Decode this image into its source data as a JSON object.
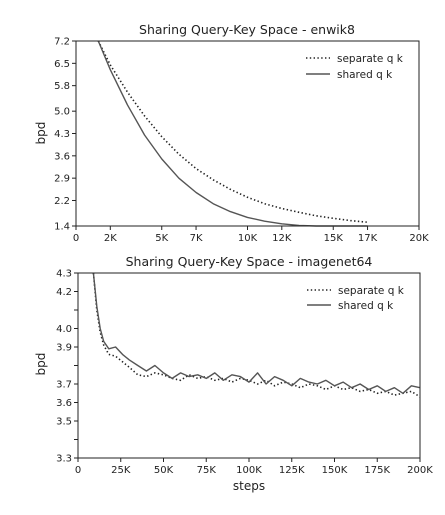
{
  "chart_data": [
    {
      "type": "line",
      "title": "Sharing Query-Key Space - enwik8",
      "xlabel": "",
      "ylabel": "bpd",
      "xlim": [
        0,
        20000
      ],
      "ylim": [
        1.4,
        7.2
      ],
      "x_ticks": [
        0,
        2000,
        5000,
        7000,
        10000,
        12000,
        15000,
        17000,
        20000
      ],
      "x_tick_labels": [
        "0",
        "2K",
        "5K",
        "7K",
        "10K",
        "12K",
        "15K",
        "17K",
        "20K"
      ],
      "y_ticks": [
        1.4,
        2.2,
        2.9,
        3.6,
        4.3,
        5.0,
        5.8,
        6.5,
        7.2
      ],
      "y_tick_labels": [
        "1.4",
        "2.2",
        "2.9",
        "3.6",
        "4.3",
        "5.0",
        "5.8",
        "6.5",
        "7.2"
      ],
      "legend": "top-right",
      "grid": false,
      "series": [
        {
          "name": "separate q k",
          "style": "dotted",
          "color": "#222222",
          "x": [
            1300,
            2000,
            3000,
            4000,
            5000,
            6000,
            7000,
            8000,
            9000,
            10000,
            11000,
            12000,
            13000,
            14000,
            15000,
            16000,
            17000
          ],
          "y": [
            7.2,
            6.45,
            5.6,
            4.85,
            4.2,
            3.65,
            3.2,
            2.85,
            2.55,
            2.3,
            2.1,
            1.95,
            1.83,
            1.72,
            1.64,
            1.57,
            1.52
          ]
        },
        {
          "name": "shared q k",
          "style": "solid",
          "color": "#555555",
          "x": [
            1300,
            2000,
            3000,
            4000,
            5000,
            6000,
            7000,
            8000,
            9000,
            10000,
            11000,
            12000,
            13000,
            14000,
            15000,
            16000,
            17000
          ],
          "y": [
            7.2,
            6.3,
            5.2,
            4.25,
            3.5,
            2.9,
            2.45,
            2.1,
            1.85,
            1.67,
            1.55,
            1.47,
            1.42,
            1.4,
            1.4,
            1.4,
            1.4
          ]
        }
      ]
    },
    {
      "type": "line",
      "title": "Sharing Query-Key Space - imagenet64",
      "xlabel": "steps",
      "ylabel": "bpd",
      "xlim": [
        0,
        200000
      ],
      "ylim": [
        3.3,
        4.3
      ],
      "x_ticks": [
        0,
        25000,
        50000,
        75000,
        100000,
        125000,
        150000,
        175000,
        200000
      ],
      "x_tick_labels": [
        "0",
        "25K",
        "50K",
        "75K",
        "100K",
        "125K",
        "150K",
        "175K",
        "200K"
      ],
      "y_ticks": [
        3.3,
        3.4,
        3.5,
        3.6,
        3.7,
        3.8,
        3.9,
        4.0,
        4.1,
        4.2,
        4.3
      ],
      "y_tick_labels": [
        "3.3",
        "",
        "3.5",
        "3.6",
        "3.7",
        "",
        "3.9",
        "4.0",
        "",
        "4.2",
        "4.3"
      ],
      "legend": "top-right",
      "grid": false,
      "series": [
        {
          "name": "separate q k",
          "style": "dotted",
          "color": "#222222",
          "x": [
            9000,
            11000,
            13000,
            15000,
            18000,
            22000,
            26000,
            30000,
            35000,
            40000,
            45000,
            50000,
            55000,
            60000,
            65000,
            70000,
            75000,
            80000,
            85000,
            90000,
            95000,
            100000,
            105000,
            110000,
            115000,
            120000,
            125000,
            130000,
            135000,
            140000,
            145000,
            150000,
            155000,
            160000,
            165000,
            170000,
            175000,
            180000,
            185000,
            190000,
            195000,
            200000
          ],
          "y": [
            4.3,
            4.1,
            3.98,
            3.91,
            3.86,
            3.85,
            3.82,
            3.79,
            3.75,
            3.74,
            3.76,
            3.75,
            3.73,
            3.72,
            3.75,
            3.73,
            3.74,
            3.72,
            3.73,
            3.71,
            3.73,
            3.72,
            3.7,
            3.72,
            3.69,
            3.71,
            3.7,
            3.68,
            3.7,
            3.69,
            3.67,
            3.69,
            3.67,
            3.68,
            3.66,
            3.67,
            3.65,
            3.66,
            3.64,
            3.65,
            3.66,
            3.63
          ]
        },
        {
          "name": "shared q k",
          "style": "solid",
          "color": "#555555",
          "x": [
            9000,
            11000,
            13000,
            15000,
            18000,
            22000,
            26000,
            30000,
            35000,
            40000,
            45000,
            50000,
            55000,
            60000,
            65000,
            70000,
            75000,
            80000,
            85000,
            90000,
            95000,
            100000,
            105000,
            110000,
            115000,
            120000,
            125000,
            130000,
            135000,
            140000,
            145000,
            150000,
            155000,
            160000,
            165000,
            170000,
            175000,
            180000,
            185000,
            190000,
            195000,
            200000
          ],
          "y": [
            4.3,
            4.12,
            4.0,
            3.93,
            3.89,
            3.9,
            3.86,
            3.83,
            3.8,
            3.77,
            3.8,
            3.76,
            3.73,
            3.76,
            3.74,
            3.75,
            3.73,
            3.76,
            3.72,
            3.75,
            3.74,
            3.71,
            3.76,
            3.7,
            3.74,
            3.72,
            3.69,
            3.73,
            3.71,
            3.7,
            3.72,
            3.69,
            3.71,
            3.68,
            3.7,
            3.67,
            3.69,
            3.66,
            3.68,
            3.65,
            3.69,
            3.68
          ]
        }
      ]
    }
  ]
}
